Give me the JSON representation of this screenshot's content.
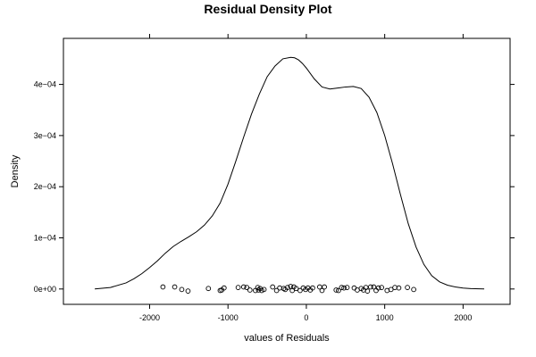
{
  "chart_data": {
    "type": "line",
    "title": "Residual Density Plot",
    "xlabel": "values of Residuals",
    "ylabel": "Density",
    "xlim": [
      -3100,
      2600
    ],
    "ylim": [
      -3e-05,
      0.00049
    ],
    "x_ticks": [
      -2000,
      -1000,
      0,
      1000,
      2000
    ],
    "x_tick_labels": [
      "-2000",
      "-1000",
      "0",
      "1000",
      "2000"
    ],
    "y_ticks": [
      0,
      0.0001,
      0.0002,
      0.0003,
      0.0004
    ],
    "y_tick_labels": [
      "0e+00",
      "1e−04",
      "2e−04",
      "3e−04",
      "4e−04"
    ],
    "grid": false,
    "legend": "none",
    "colors": {
      "line": "#000000",
      "points": "#000000",
      "frame": "#000000"
    },
    "series": [
      {
        "kind": "density",
        "x": [
          -2700,
          -2500,
          -2300,
          -2200,
          -2100,
          -2000,
          -1900,
          -1800,
          -1700,
          -1600,
          -1500,
          -1400,
          -1300,
          -1200,
          -1100,
          -1000,
          -900,
          -800,
          -700,
          -600,
          -500,
          -400,
          -300,
          -200,
          -150,
          -100,
          -50,
          0,
          100,
          200,
          300,
          400,
          500,
          600,
          700,
          800,
          900,
          1000,
          1100,
          1200,
          1300,
          1400,
          1500,
          1600,
          1700,
          1800,
          1900,
          2000,
          2100,
          2270
        ],
        "y": [
          1e-07,
          3e-06,
          1.2e-05,
          2e-05,
          3e-05,
          4.2e-05,
          5.5e-05,
          7e-05,
          8.3e-05,
          9.3e-05,
          0.000102,
          0.000112,
          0.000125,
          0.000143,
          0.000168,
          0.000205,
          0.00025,
          0.000297,
          0.000342,
          0.000381,
          0.000415,
          0.000436,
          0.00045,
          0.000453,
          0.000452,
          0.000448,
          0.000441,
          0.000432,
          0.000411,
          0.000395,
          0.000391,
          0.000393,
          0.000395,
          0.000396,
          0.000392,
          0.000375,
          0.000345,
          0.0003,
          0.000245,
          0.000185,
          0.000128,
          8.2e-05,
          4.8e-05,
          2.6e-05,
          1.4e-05,
          7.5e-06,
          4e-06,
          1.8e-06,
          8e-07,
          2e-07
        ]
      },
      {
        "kind": "points",
        "x": [
          -1830,
          -1680,
          -1590,
          -1510,
          -1250,
          -1100,
          -1080,
          -1050,
          -870,
          -800,
          -760,
          -720,
          -650,
          -620,
          -610,
          -590,
          -570,
          -540,
          -430,
          -380,
          -340,
          -290,
          -270,
          -240,
          -200,
          -180,
          -160,
          -130,
          -80,
          -40,
          -10,
          20,
          50,
          80,
          170,
          200,
          230,
          380,
          410,
          450,
          480,
          520,
          610,
          650,
          700,
          730,
          760,
          780,
          820,
          860,
          890,
          920,
          960,
          1030,
          1080,
          1130,
          1180,
          1290,
          1370
        ],
        "y": [
          4e-06,
          4e-06,
          -1e-06,
          -4e-06,
          1e-06,
          -3e-06,
          -2e-06,
          2e-06,
          3e-06,
          4e-06,
          3e-06,
          -2e-06,
          -3e-06,
          3e-06,
          -2e-06,
          1e-06,
          -3e-06,
          -1e-06,
          4e-06,
          -3e-06,
          2e-06,
          1e-06,
          -1e-06,
          3e-06,
          5e-06,
          -3e-06,
          4e-06,
          1e-06,
          -3e-06,
          2e-06,
          -1e-06,
          2e-06,
          -2e-06,
          2e-06,
          4e-06,
          -3e-06,
          4e-06,
          -2e-06,
          -3e-06,
          3e-06,
          2e-06,
          3e-06,
          2e-06,
          -2e-06,
          1e-06,
          -2e-06,
          3e-06,
          -4e-06,
          4e-06,
          4e-06,
          -3e-06,
          2e-06,
          3e-06,
          -3e-06,
          -1e-06,
          3e-06,
          2e-06,
          3e-06,
          -1e-06
        ]
      }
    ]
  }
}
